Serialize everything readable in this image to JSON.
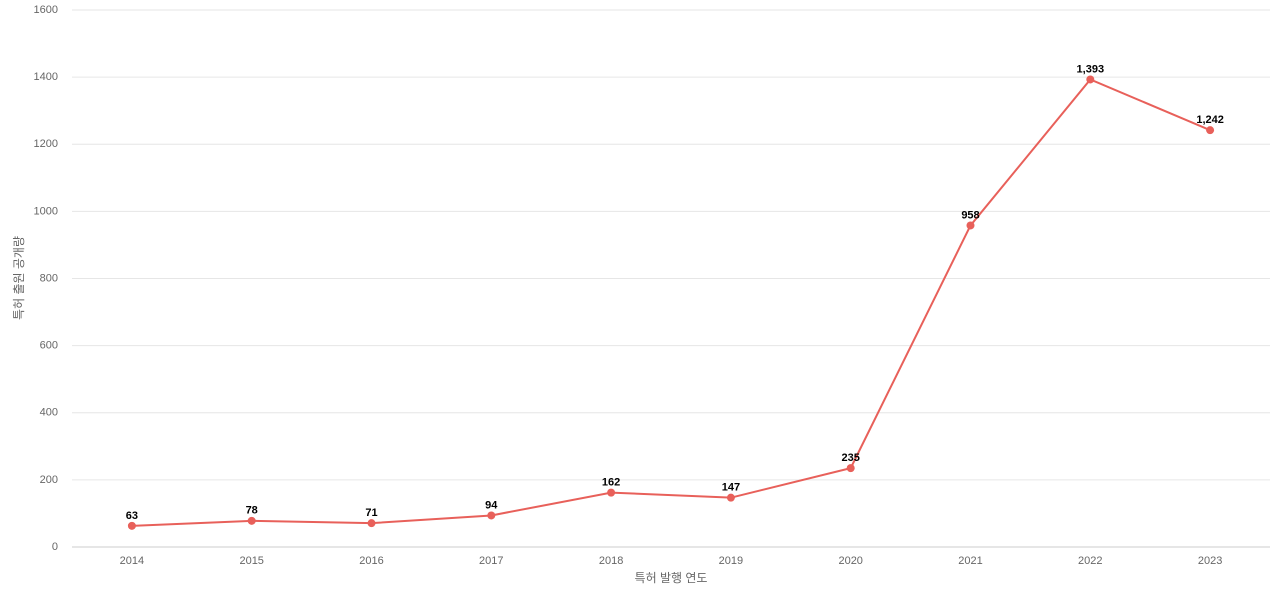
{
  "chart_data": {
    "type": "line",
    "x_label": "특허 발행 연도",
    "y_label": "특허 출원 공개량",
    "categories": [
      "2014",
      "2015",
      "2016",
      "2017",
      "2018",
      "2019",
      "2020",
      "2021",
      "2022",
      "2023"
    ],
    "series": [
      {
        "name": "특허 출원 공개량",
        "color": "#e8605a",
        "values": [
          63,
          78,
          71,
          94,
          162,
          147,
          235,
          958,
          1393,
          1242
        ],
        "value_labels": [
          "63",
          "78",
          "71",
          "94",
          "162",
          "147",
          "235",
          "958",
          "1,393",
          "1,242"
        ]
      }
    ],
    "ylim": [
      0,
      1600
    ],
    "yticks": [
      0,
      200,
      400,
      600,
      800,
      1000,
      1200,
      1400,
      1600
    ],
    "grid": true
  }
}
